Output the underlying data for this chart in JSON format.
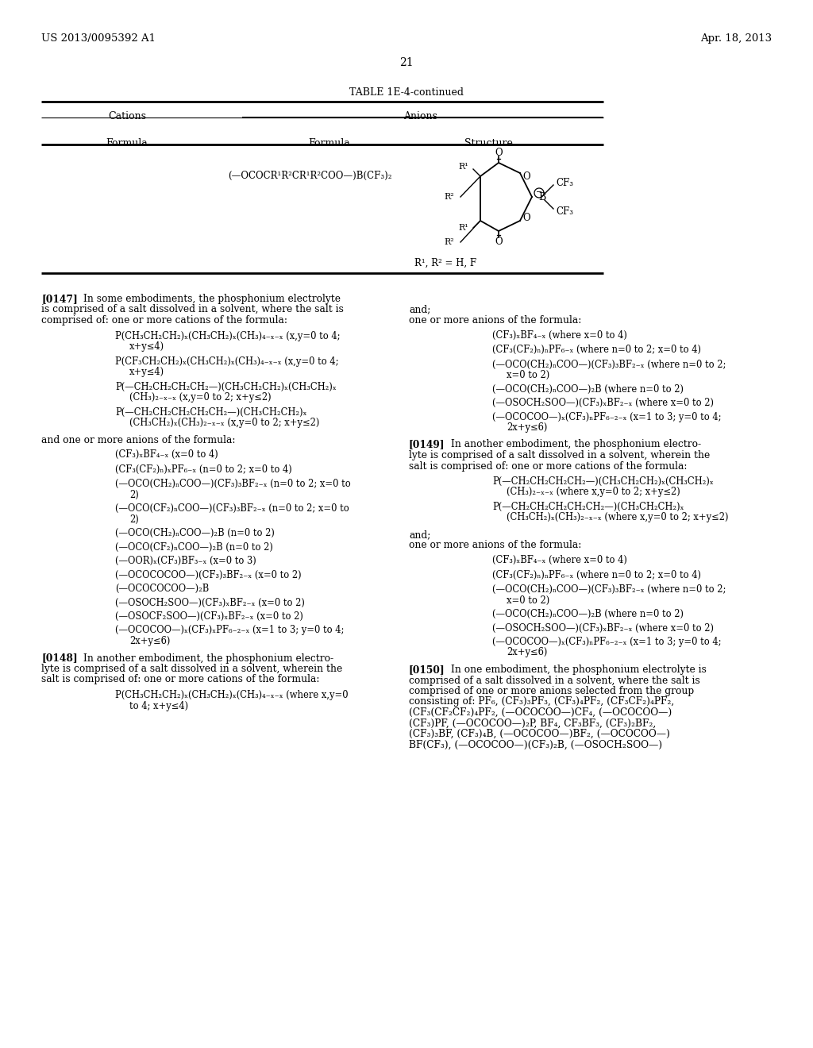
{
  "bg_color": "#ffffff",
  "header_left": "US 2013/0095392 A1",
  "header_right": "Apr. 18, 2013",
  "page_number": "21",
  "table_title": "TABLE 1E-4-continued"
}
